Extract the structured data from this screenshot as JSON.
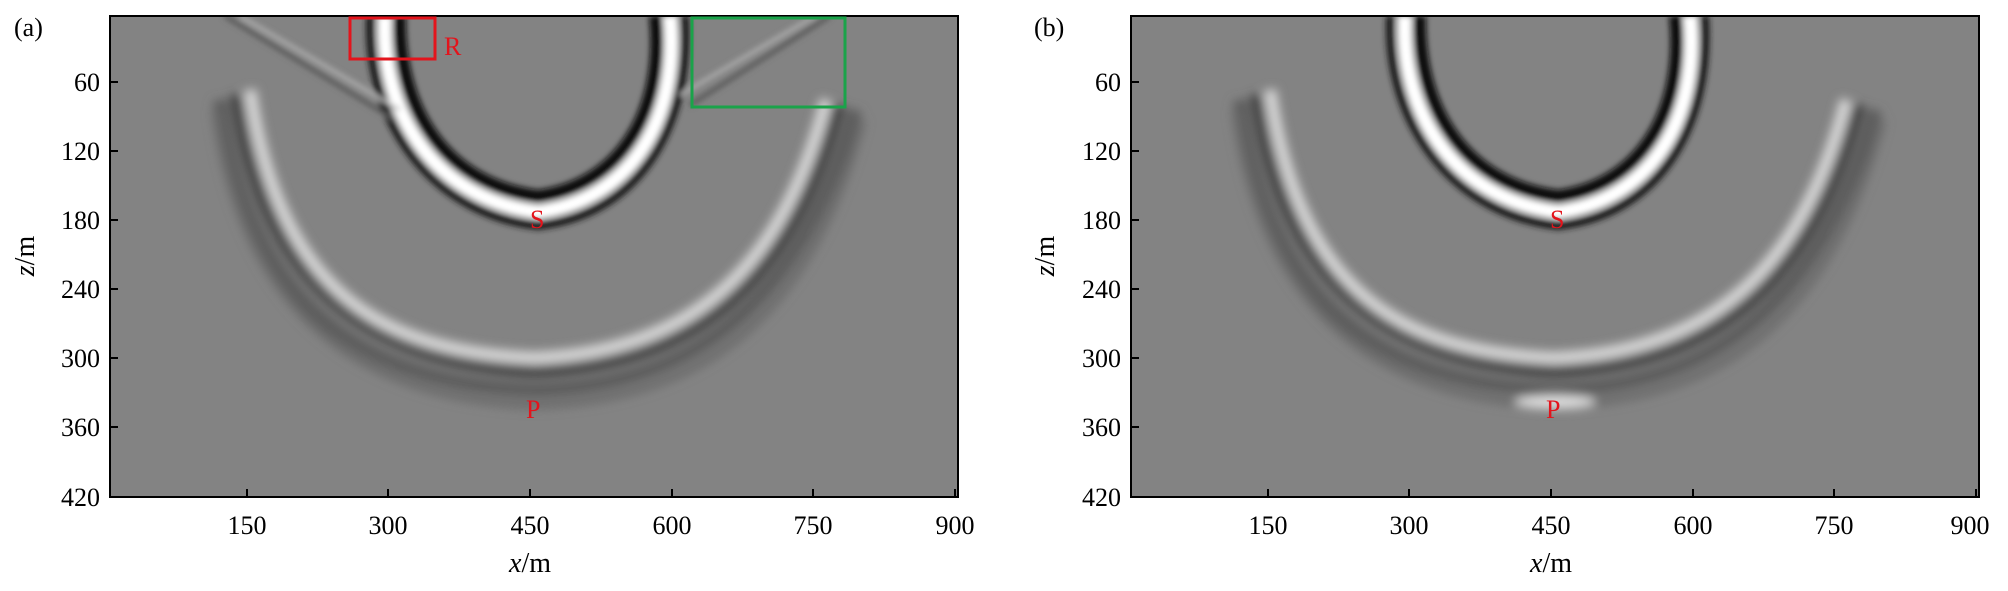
{
  "panels": [
    {
      "label": "(a)",
      "x_ticks": [
        "150",
        "300",
        "450",
        "600",
        "750",
        "900"
      ],
      "y_ticks": [
        "60",
        "120",
        "180",
        "240",
        "300",
        "360",
        "420"
      ],
      "x_axis_var": "x",
      "x_axis_unit": "/m",
      "y_axis_var": "z",
      "y_axis_unit": "/m",
      "annotations": {
        "R": "R",
        "S": "S",
        "P": "P"
      },
      "boxes": [
        {
          "name": "R",
          "color": "#e3141c"
        },
        {
          "name": "green",
          "color": "#1aa34a"
        }
      ]
    },
    {
      "label": "(b)",
      "x_ticks": [
        "150",
        "300",
        "450",
        "600",
        "750",
        "900"
      ],
      "y_ticks": [
        "60",
        "120",
        "180",
        "240",
        "300",
        "360",
        "420"
      ],
      "x_axis_var": "x",
      "x_axis_unit": "/m",
      "y_axis_var": "z",
      "y_axis_unit": "/m",
      "annotations": {
        "S": "S",
        "P": "P"
      }
    }
  ],
  "colors": {
    "background_gray": "#828282",
    "annotation_red": "#e3141c",
    "box_green": "#1aa34a"
  }
}
